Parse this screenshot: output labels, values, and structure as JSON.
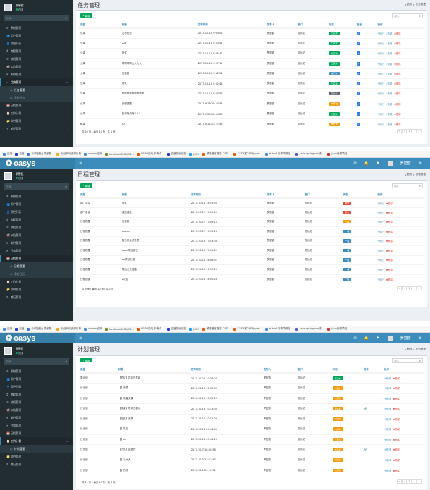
{
  "colors": {
    "header": "#3c8dbc",
    "logo_bg": "#367fa9",
    "sidebar": "#222d32",
    "accent": "#3c8dbc",
    "success": "#00a65a",
    "danger": "#dd4b39",
    "warning": "#f39c12",
    "info": "#00c0ef"
  },
  "bookmarks": [
    {
      "label": "应用",
      "color": "#4285f4"
    },
    {
      "label": "百度",
      "color": "#2932e1"
    },
    {
      "label": "小鸡哈勃 | 关系数...",
      "color": "#3a7bd5"
    },
    {
      "label": "行业网络资源目标",
      "color": "#f6a623"
    },
    {
      "label": "maven仓库",
      "color": "#4a90d9"
    },
    {
      "label": "localhost8080/OS...",
      "color": "#6b8e23"
    },
    {
      "label": "CSDN论坛-只专个...",
      "color": "#e65c00"
    },
    {
      "label": "百度搜索链接",
      "color": "#2932e1"
    },
    {
      "label": "JSON",
      "color": "#1da1f2"
    },
    {
      "label": "确准程序报告-CSD...",
      "color": "#e65c00"
    },
    {
      "label": "CSS3常CSS3jquer...",
      "color": "#e65c00"
    },
    {
      "label": "js href 与事件绑定...",
      "color": "#4a90d9"
    },
    {
      "label": "java.springboot集...",
      "color": "#5a5ad6"
    },
    {
      "label": "Java开源项目",
      "color": "#d32f2f"
    }
  ],
  "app": {
    "logo": "oasys",
    "toggle": "≡"
  },
  "user": {
    "name": "罗密欧",
    "status": "在线"
  },
  "sidebar": {
    "search_placeholder": "搜索...",
    "items": [
      {
        "icon": "⚙",
        "label": "系统管理"
      },
      {
        "icon": "👥",
        "label": "用户管理"
      },
      {
        "icon": "👤",
        "label": "角色列表"
      },
      {
        "icon": "⏱",
        "label": "考勤管理"
      },
      {
        "icon": "☰",
        "label": "流程管理"
      },
      {
        "icon": "📢",
        "label": "公告管理"
      },
      {
        "icon": "✉",
        "label": "邮件管理"
      },
      {
        "icon": "✔",
        "label": "任务管理"
      },
      {
        "icon": "📅",
        "label": "日程管理"
      },
      {
        "icon": "📋",
        "label": "工作计划"
      },
      {
        "icon": "📁",
        "label": "文件管理"
      },
      {
        "icon": "✎",
        "label": "笔记管理"
      }
    ],
    "subs": {
      "task": [
        "任务管理",
        "我的任务"
      ],
      "schedule": [
        "日程管理",
        "我的日历"
      ],
      "plan": [
        "计划管理"
      ]
    }
  },
  "panel1": {
    "title": "任务管理",
    "crumb_home": "首页",
    "crumb_page": "任务管理",
    "add": "新增",
    "search_placeholder": "查找...",
    "columns": [
      "类型",
      "标题",
      "发布时间",
      "发布人",
      "部门",
      "状态",
      "查看",
      "操作"
    ],
    "rows": [
      {
        "type": "公事",
        "title": "发布任务",
        "time": "2017-10-18 9:04:02",
        "user": "罗密欧",
        "dept": "总经办",
        "status": "已完成",
        "color": "#00a65a"
      },
      {
        "type": "公事",
        "title": "221",
        "time": "2017-10-18 9:33:52",
        "user": "罗密欧",
        "dept": "总经办",
        "status": "已完成",
        "color": "#00a65a"
      },
      {
        "type": "公事",
        "title": "测试",
        "time": "2017-10-18 9:35:41",
        "user": "罗密欧",
        "dept": "总经办",
        "status": "已完成",
        "color": "#00a65a"
      },
      {
        "type": "公事",
        "title": "啊啊啊啊大大大大",
        "time": "2017-10-18 9:37:12",
        "user": "罗密欧",
        "dept": "总经办",
        "status": "已完成",
        "color": "#00a65a"
      },
      {
        "type": "公事",
        "title": "日程表",
        "time": "2017-10-18 9:32:52",
        "user": "罗密欧",
        "dept": "总经办",
        "status": "进行中",
        "color": "#3c8dbc"
      },
      {
        "type": "公事",
        "title": "测试",
        "time": "2017-10-18 9:32:41",
        "user": "罗密欧",
        "dept": "总经办",
        "status": "已完成",
        "color": "#00a65a"
      },
      {
        "type": "公事",
        "title": "啊啊啊啊啊啊啊啊啊",
        "time": "2017-10-18 9:30:58",
        "user": "罗密欧",
        "dept": "总经办",
        "status": "已提交",
        "color": "#555d66"
      },
      {
        "type": "公事",
        "title": "日程提醒",
        "time": "2017-9-29 20:40:54",
        "user": "罗密欧",
        "dept": "总经办",
        "status": "未开始",
        "color": "#f39c12"
      },
      {
        "type": "公事",
        "title": "的说啥说啥?!!!!",
        "time": "2017-9-29 18:44:20",
        "user": "罗密欧",
        "dept": "总经办",
        "status": "已完成",
        "color": "#00a65a"
      },
      {
        "type": "私事",
        "title": "ID",
        "time": "2017-9-22 13:27:56",
        "user": "罗密欧",
        "dept": "总经办",
        "status": "未开始",
        "color": "#f39c12"
      }
    ],
    "footer": "共 10 条 | 每页 10 条 | 共 1 页",
    "edit": "修改",
    "view": "查看",
    "del": "删除"
  },
  "panel2": {
    "title": "日程管理",
    "crumb_home": "首页",
    "crumb_page": "日程管理",
    "add": "新增",
    "search_placeholder": "查找...",
    "columns": [
      "类型",
      "标题",
      "发布时间",
      "发布人",
      "部门",
      "状态",
      "操作"
    ],
    "rows": [
      {
        "type": "部门会议",
        "title": "测试",
        "time": "2017-10-18 16:53:35",
        "user": "罗密欧",
        "dept": "总经办",
        "status": "重要",
        "color": "#dd4b39"
      },
      {
        "type": "部门会议",
        "title": "通知通告",
        "time": "2017-10-17 17:09:15",
        "user": "罗密欧",
        "dept": "总经办",
        "status": "紧急",
        "color": "#dd4b39"
      },
      {
        "type": "日程提醒",
        "title": "日程表",
        "time": "2017-10-17 17:09:15",
        "user": "罗密欧",
        "dept": "总经办",
        "status": "一般",
        "color": "#f39c12"
      },
      {
        "type": "日程提醒",
        "title": "qweee",
        "time": "2017-10-17 17:35:16",
        "user": "罗密欧",
        "dept": "总经办",
        "status": "一般",
        "color": "#3c8dbc"
      },
      {
        "type": "日程提醒",
        "title": "周日开会讨论项",
        "time": "2017-10-18 17:03:06",
        "user": "罗密欧",
        "dept": "总经办",
        "status": "一般",
        "color": "#3c8dbc"
      },
      {
        "type": "日程提醒",
        "title": "oasis项目会议",
        "time": "2017-10-16 17:01:22",
        "user": "罗密欧",
        "dept": "总经办",
        "status": "一般",
        "color": "#3c8dbc"
      },
      {
        "type": "日程提醒",
        "title": "oa项目汇报",
        "time": "2017-10-16 16:56:31",
        "user": "罗密欧",
        "dept": "总经办",
        "status": "一般",
        "color": "#3c8dbc"
      },
      {
        "type": "日程提醒",
        "title": "明后天去结婚",
        "time": "2017-10-16 16:53:25",
        "user": "罗密欧",
        "dept": "总经办",
        "status": "一般",
        "color": "#3c8dbc"
      },
      {
        "type": "日程提醒",
        "title": "2项目",
        "time": "2017-10-16 16:50:28",
        "user": "罗密欧",
        "dept": "总经办",
        "status": "一般",
        "color": "#3c8dbc"
      }
    ],
    "footer": "共 9 条 | 每页 10 条 | 共 1 页",
    "edit": "修改",
    "del": "删除"
  },
  "panel3": {
    "title": "计划管理",
    "crumb_home": "首页",
    "crumb_page": "计划管理",
    "add": "新增",
    "search_placeholder": "查找...",
    "columns": [
      "类型",
      "标题",
      "发布时间",
      "发布人",
      "部门",
      "状态",
      "附件",
      "操作"
    ],
    "rows": [
      {
        "type": "周计划",
        "title": "【总结】项目开发级",
        "time": "2017-10-20 10:29:27",
        "user": "罗密欧",
        "dept": "总经办",
        "status": "已完成",
        "color": "#00a65a",
        "clip": ""
      },
      {
        "type": "日计划",
        "title": "【】无课",
        "time": "2017-10-18 10:15:30",
        "user": "罗密欧",
        "dept": "总经办",
        "status": "未完成",
        "color": "#f39c12",
        "clip": ""
      },
      {
        "type": "日计划",
        "title": "【】测量无课",
        "time": "2017-10-18 10:13:20",
        "user": "罗密欧",
        "dept": "总经办",
        "status": "未完成",
        "color": "#f39c12",
        "clip": ""
      },
      {
        "type": "日计划",
        "title": "【结束】等你去看地",
        "time": "2017-10-18 10:13:30",
        "user": "罗密欧",
        "dept": "总经办",
        "status": "未完成",
        "color": "#f39c12",
        "clip": "🔗"
      },
      {
        "type": "日计划",
        "title": "【结束】无课",
        "time": "2017-10-18 10:07:09",
        "user": "罗密欧",
        "dept": "总经办",
        "status": "未完成",
        "color": "#f39c12",
        "clip": ""
      },
      {
        "type": "日计划",
        "title": "【】项目",
        "time": "2017-10-18 09:46:49",
        "user": "罗密欧",
        "dept": "总经办",
        "status": "未完成",
        "color": "#f39c12",
        "clip": ""
      },
      {
        "type": "日计划",
        "title": "【】ok",
        "time": "2017-10-18 09:46:23",
        "user": "罗密欧",
        "dept": "总经办",
        "status": "未完成",
        "color": "#f39c12",
        "clip": ""
      },
      {
        "type": "日计划",
        "title": "【历史】复盘的",
        "time": "2017-10-7 18:30:58",
        "user": "罗密欧",
        "dept": "总经办",
        "status": "未完成",
        "color": "#f39c12",
        "clip": "🔗"
      },
      {
        "type": "日计划",
        "title": "【】义大大",
        "time": "2017-10-5 23:27:47",
        "user": "罗密欧",
        "dept": "总经办",
        "status": "未完成",
        "color": "#f39c12",
        "clip": ""
      },
      {
        "type": "日计划",
        "title": "【】在线",
        "time": "2017-10-1 20:10:31",
        "user": "罗密欧",
        "dept": "总经办",
        "status": "未完成",
        "color": "#f39c12",
        "clip": ""
      }
    ],
    "footer": "共 21 条 | 每页 10 条 | 共 3 页",
    "edit": "修改",
    "del": "删除"
  },
  "pager": [
    "«",
    "‹",
    "1",
    "›",
    "»"
  ]
}
